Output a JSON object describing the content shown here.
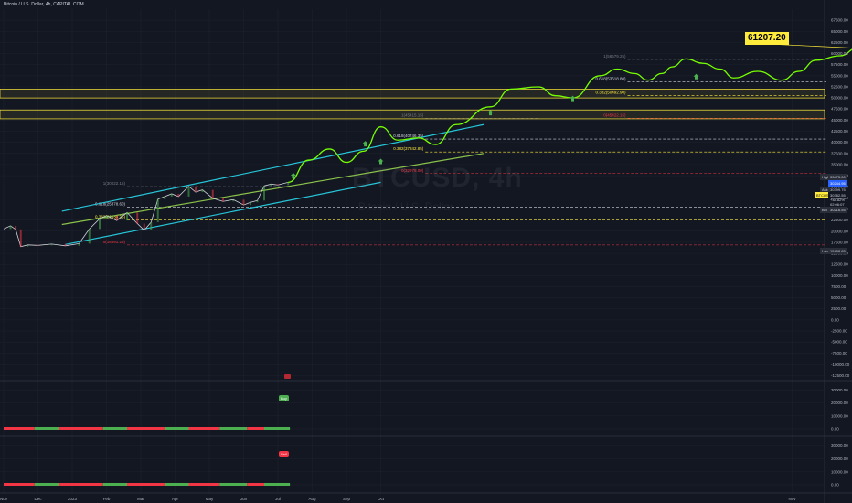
{
  "header": {
    "title": "Bitcoin / U.S. Dollar, 4h, CAPITAL.COM"
  },
  "watermark": {
    "symbol": "BTCUSD, 4h",
    "name": "Bitcoin / U.S. Dollar"
  },
  "colors": {
    "background": "#131722",
    "grid": "#1e222d",
    "channel": "#26c6da",
    "midline": "#8bc34a",
    "projection": "#76ff03",
    "zone": "#ffeb3b",
    "fib_white": "#d1d4dc",
    "fib_yellow": "#ffeb3b",
    "fib_red": "#f23645",
    "fib_gray": "#787b86",
    "bull": "#4caf50",
    "bear": "#f23645"
  },
  "chart_data": {
    "type": "line",
    "title": "Bitcoin / U.S. Dollar, 4h, CAPITAL.COM",
    "ylim": [
      -13000,
      70000
    ],
    "y_ticks": [
      67500,
      65000,
      62500,
      60000,
      57500,
      55000,
      52500,
      50000,
      47500,
      45000,
      42500,
      40000,
      37500,
      35000,
      32500,
      30000,
      27500,
      25000,
      22500,
      20000,
      17500,
      15000,
      12500,
      10000,
      7500,
      5000,
      2500,
      0,
      -2500,
      -5000,
      -7500,
      -10000,
      -12500
    ],
    "x_ticks": [
      {
        "label": "Nov",
        "t": 0
      },
      {
        "label": "Dec",
        "t": 1
      },
      {
        "label": "2023",
        "t": 2
      },
      {
        "label": "Feb",
        "t": 3
      },
      {
        "label": "Mar",
        "t": 4
      },
      {
        "label": "Apr",
        "t": 5
      },
      {
        "label": "May",
        "t": 6
      },
      {
        "label": "Jun",
        "t": 7
      },
      {
        "label": "Jul",
        "t": 8
      },
      {
        "label": "Aug",
        "t": 9
      },
      {
        "label": "Sep",
        "t": 10
      },
      {
        "label": "Oct",
        "t": 11
      },
      {
        "label": "Nov",
        "t": 23
      }
    ],
    "price_series": {
      "name": "BTCUSD",
      "points": [
        [
          0.0,
          20500
        ],
        [
          0.2,
          21200
        ],
        [
          0.35,
          20400
        ],
        [
          0.5,
          16500
        ],
        [
          0.7,
          16900
        ],
        [
          1.0,
          16800
        ],
        [
          1.4,
          17100
        ],
        [
          1.8,
          16700
        ],
        [
          2.2,
          17200
        ],
        [
          2.5,
          20500
        ],
        [
          2.8,
          22800
        ],
        [
          3.0,
          23500
        ],
        [
          3.3,
          22400
        ],
        [
          3.6,
          24200
        ],
        [
          3.9,
          21700
        ],
        [
          4.1,
          20200
        ],
        [
          4.3,
          22000
        ],
        [
          4.5,
          27200
        ],
        [
          4.7,
          27800
        ],
        [
          4.9,
          28400
        ],
        [
          5.1,
          27800
        ],
        [
          5.4,
          30100
        ],
        [
          5.6,
          28800
        ],
        [
          5.8,
          29300
        ],
        [
          6.1,
          27400
        ],
        [
          6.4,
          26700
        ],
        [
          6.7,
          27100
        ],
        [
          7.0,
          25900
        ],
        [
          7.2,
          26500
        ],
        [
          7.4,
          26900
        ],
        [
          7.6,
          30200
        ],
        [
          7.8,
          30600
        ],
        [
          8.0,
          30400
        ],
        [
          8.3,
          31000
        ]
      ]
    },
    "projection": {
      "name": "projection",
      "points": [
        [
          8.3,
          31000
        ],
        [
          8.9,
          36000
        ],
        [
          9.5,
          38500
        ],
        [
          10.0,
          35500
        ],
        [
          10.5,
          38000
        ],
        [
          11.0,
          43500
        ],
        [
          11.5,
          40500
        ],
        [
          12.1,
          41000
        ],
        [
          12.6,
          39500
        ],
        [
          13.2,
          44000
        ],
        [
          14.2,
          48000
        ],
        [
          14.8,
          52000
        ],
        [
          15.6,
          52500
        ],
        [
          16.1,
          50500
        ],
        [
          16.6,
          50000
        ],
        [
          17.4,
          55000
        ],
        [
          17.9,
          56500
        ],
        [
          18.4,
          55500
        ],
        [
          18.8,
          54000
        ],
        [
          19.2,
          55500
        ],
        [
          19.5,
          57000
        ],
        [
          19.9,
          58800
        ],
        [
          20.4,
          57800
        ],
        [
          20.9,
          56500
        ],
        [
          21.3,
          54500
        ],
        [
          22.0,
          56000
        ],
        [
          22.7,
          54000
        ],
        [
          23.2,
          56000
        ],
        [
          23.7,
          58500
        ],
        [
          24.4,
          59500
        ],
        [
          24.9,
          61207
        ]
      ]
    },
    "channel": {
      "upper": [
        [
          1.7,
          24500
        ],
        [
          14.0,
          44000
        ]
      ],
      "middle": [
        [
          1.7,
          21500
        ],
        [
          14.0,
          37500
        ]
      ],
      "lower": [
        [
          1.8,
          17000
        ],
        [
          11.0,
          31000
        ]
      ]
    },
    "zones": [
      [
        50000,
        52000
      ],
      [
        45300,
        47300
      ]
    ],
    "fib_levels": [
      {
        "label": "1(30022.15)",
        "value": 30022,
        "x0": 3.6,
        "x1": 8.3,
        "color": "gray"
      },
      {
        "label": "0.618(25378.60)",
        "value": 25378,
        "x0": 3.6,
        "x1": 24.0,
        "color": "white"
      },
      {
        "label": "0.382(22539.25)",
        "value": 22539,
        "x0": 3.6,
        "x1": 24.0,
        "color": "yellow"
      },
      {
        "label": "0(16891.26)",
        "value": 16891,
        "x0": 3.6,
        "x1": 24.0,
        "color": "red"
      },
      {
        "label": "1(45415.15)",
        "value": 45415,
        "x0": 12.3,
        "x1": 15.6,
        "color": "gray"
      },
      {
        "label": "0.618(40746.35)",
        "value": 40746,
        "x0": 12.3,
        "x1": 24.0,
        "color": "white"
      },
      {
        "label": "0.382(37842.85)",
        "value": 37842,
        "x0": 12.3,
        "x1": 24.0,
        "color": "yellow"
      },
      {
        "label": "0(32978.00)",
        "value": 32978,
        "x0": 12.3,
        "x1": 24.0,
        "color": "red"
      },
      {
        "label": "1(58679.25)",
        "value": 58679,
        "x0": 18.2,
        "x1": 24.0,
        "color": "gray"
      },
      {
        "label": "0.618(53618.80)",
        "value": 53618,
        "x0": 18.2,
        "x1": 24.0,
        "color": "white"
      },
      {
        "label": "0.382(50492.90)",
        "value": 50492,
        "x0": 18.2,
        "x1": 24.0,
        "color": "yellow"
      },
      {
        "label": "0(45422.15)",
        "value": 45422,
        "x0": 18.2,
        "x1": 24.0,
        "color": "red"
      }
    ],
    "arrows": [
      [
        8.45,
        32300
      ],
      [
        10.55,
        39500
      ],
      [
        11.0,
        35500
      ],
      [
        14.2,
        46500
      ],
      [
        16.6,
        49700
      ],
      [
        20.2,
        54600
      ]
    ]
  },
  "callout": {
    "value": "61207.20"
  },
  "axis_tags": {
    "high": {
      "label": "High",
      "value": "33475.00"
    },
    "open_price": {
      "label": "",
      "value": "30244.95"
    },
    "ask": {
      "label": "Ask",
      "value": "30399.75"
    },
    "symbol": {
      "label": "BTCUSD",
      "value": "30382.55"
    },
    "change": {
      "value": "+48.82%"
    },
    "countdown": {
      "value": "02:06:07"
    },
    "bid": {
      "label": "Bid",
      "value": "30216.55"
    },
    "low": {
      "label": "Low",
      "value": "15458.65"
    }
  },
  "indicators": {
    "pane1": {
      "y_ticks": [
        30000,
        20000,
        10000,
        0
      ],
      "label": "Buy",
      "bar_value": 0
    },
    "pane2": {
      "y_ticks": [
        30000,
        20000,
        10000,
        0
      ],
      "label": "Sell",
      "bar_value": 0
    }
  }
}
